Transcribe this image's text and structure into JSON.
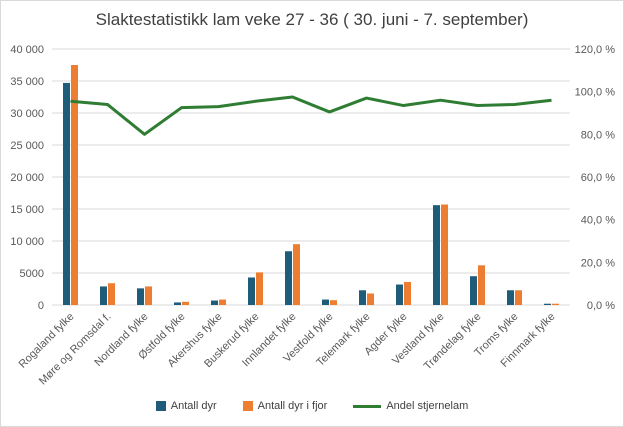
{
  "chart_data": {
    "type": "bar",
    "title": "Slaktestatistikk lam veke 27 - 36 ( 30. juni - 7. september)",
    "categories": [
      "Rogaland fylke",
      "Møre og Romsdal f.",
      "Nordland fylke",
      "Østfold fylke",
      "Akershus fylke",
      "Buskerud fylke",
      "Innlandet fylke",
      "Vestfold fylke",
      "Telemark fylke",
      "Agder fylke",
      "Vestland fylke",
      "Trøndelag fylke",
      "Troms fylke",
      "Finnmark fylke"
    ],
    "series": [
      {
        "name": "Antall dyr",
        "type": "bar",
        "axis": "left",
        "color": "#1f5c7a",
        "values": [
          34700,
          2900,
          2600,
          400,
          700,
          4300,
          8400,
          850,
          2300,
          3200,
          15600,
          4500,
          2300,
          200
        ]
      },
      {
        "name": "Antall dyr i fjor",
        "type": "bar",
        "axis": "left",
        "color": "#ed7d31",
        "values": [
          37500,
          3400,
          2900,
          500,
          850,
          5100,
          9500,
          750,
          1800,
          3600,
          15700,
          6200,
          2300,
          200
        ]
      },
      {
        "name": "Andel stjernelam",
        "type": "line",
        "axis": "right",
        "color": "#2e7d32",
        "values": [
          95.5,
          94.0,
          80.0,
          92.5,
          93.0,
          95.5,
          97.5,
          90.5,
          97.0,
          93.5,
          96.0,
          93.5,
          94.0,
          96.0
        ]
      }
    ],
    "ylim": [
      0,
      40000
    ],
    "yticks": [
      "0",
      "5000",
      "10 000",
      "15 000",
      "20 000",
      "25 000",
      "30 000",
      "35 000",
      "40 000"
    ],
    "y2lim": [
      0,
      120
    ],
    "y2ticks": [
      "0,0 %",
      "20,0 %",
      "40,0 %",
      "60,0 %",
      "80,0 %",
      "100,0 %",
      "120,0 %"
    ],
    "grid": true,
    "legend_position": "bottom"
  }
}
